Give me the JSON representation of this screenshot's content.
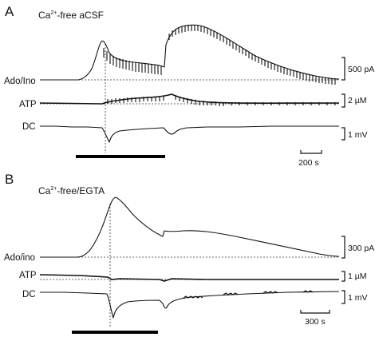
{
  "panels": [
    {
      "id": "A",
      "letter": "A",
      "condition": "Ca2+-free aCSF",
      "condition_base": "Ca",
      "condition_sup": "2+",
      "condition_rest": "-free aCSF",
      "traces": [
        "Ado/Ino",
        "ATP",
        "DC"
      ],
      "scales": [
        "500 pA",
        "2 µM",
        "1 mV"
      ],
      "time_scale": "200 s"
    },
    {
      "id": "B",
      "letter": "B",
      "condition": "Ca2+-free/EGTA",
      "condition_base": "Ca",
      "condition_sup": "2+",
      "condition_rest": "-free/EGTA",
      "traces": [
        "Ado/ino",
        "ATP",
        "DC"
      ],
      "scales": [
        "300 pA",
        "1 µM",
        "1 mV"
      ],
      "time_scale": "300 s"
    }
  ],
  "colors": {
    "trace": "#111111",
    "background": "#ffffff"
  }
}
